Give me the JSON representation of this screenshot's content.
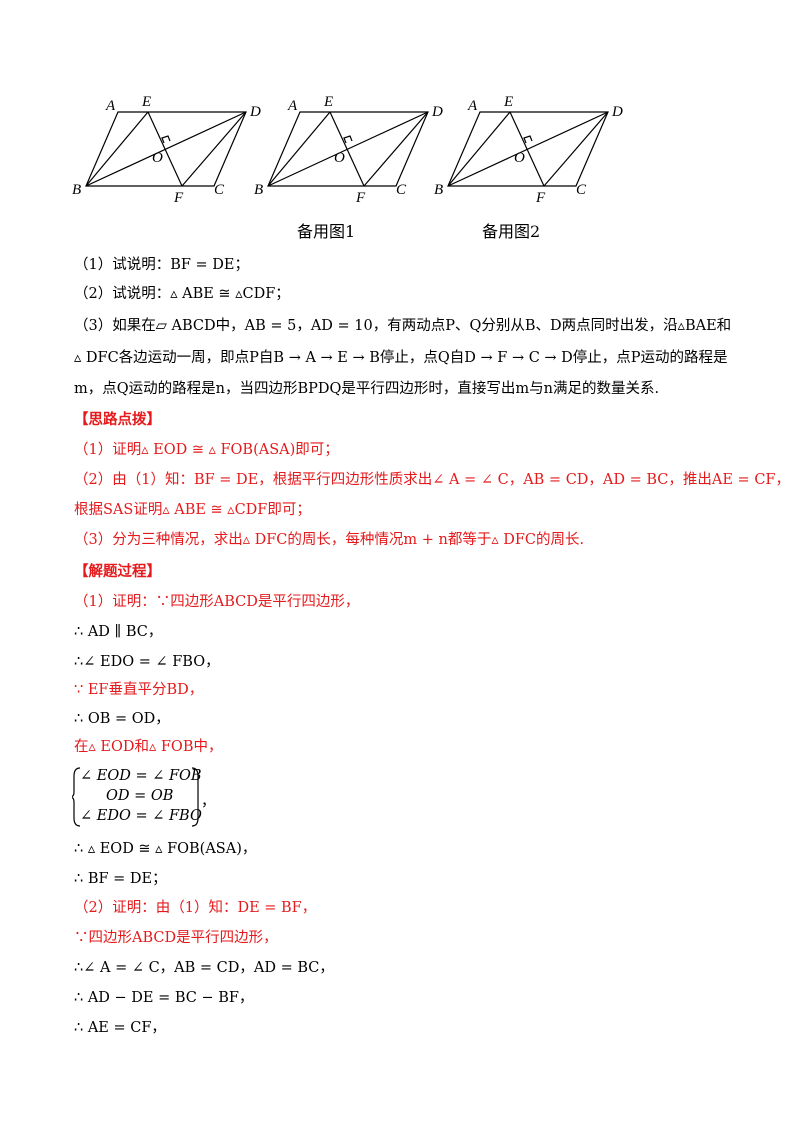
{
  "figures": {
    "labels": {
      "A": "A",
      "E": "E",
      "D": "D",
      "O": "O",
      "B": "B",
      "F": "F",
      "C": "C"
    },
    "captions": [
      "备用图1",
      "备用图2"
    ]
  },
  "lines": [
    "（1）试说明：BF = DE；",
    "（2）试说明：▵ ABE ≅ ▵CDF；",
    "（3）如果在▱ ABCD中，AB = 5，AD = 10，有两动点P、Q分别从B、D两点同时出发，沿▵BAE和",
    "▵ DFC各边运动一周，即点P自B → A → E → B停止，点Q自D → F → C → D停止，点P运动的路程是",
    "m，点Q运动的路程是n，当四边形BPDQ是平行四边形时，直接写出m与n满足的数量关系.",
    "【思路点拨】",
    "（1）证明▵ EOD ≅ ▵ FOB(ASA)即可；",
    "（2）由（1）知：BF = DE，根据平行四边形性质求出∠ A = ∠ C，AB = CD，AD = BC，推出AE = CF，",
    "根据SAS证明▵ ABE ≅ ▵CDF即可；",
    "（3）分为三种情况，求出▵ DFC的周长，每种情况m + n都等于▵ DFC的周长.",
    "【解题过程】",
    "（1）证明：∵四边形ABCD是平行四边形，",
    "∴ AD ∥ BC，",
    "∴∠ EDO = ∠ FBO，",
    "∵ EF垂直平分BD，",
    "∴ OB = OD，",
    "在▵ EOD和▵ FOB中，",
    "▵",
    "∴ ▵ EOD ≅ ▵ FOB(ASA)，",
    "∴ BF = DE；",
    "（2）证明：由（1）知：DE = BF，",
    "∵四边形ABCD是平行四边形，",
    "∴∠ A = ∠ C，AB = CD，AD = BC，",
    "∴ AD − DE = BC − BF，",
    "∴ AE = CF，"
  ],
  "system": {
    "rows": [
      "∠ EOD = ∠ FOB",
      "OD = OB",
      "∠ EDO = ∠ FBO"
    ],
    "trail": "，"
  },
  "colors": {
    "text": "#000000",
    "highlight": "#e41a1c"
  }
}
